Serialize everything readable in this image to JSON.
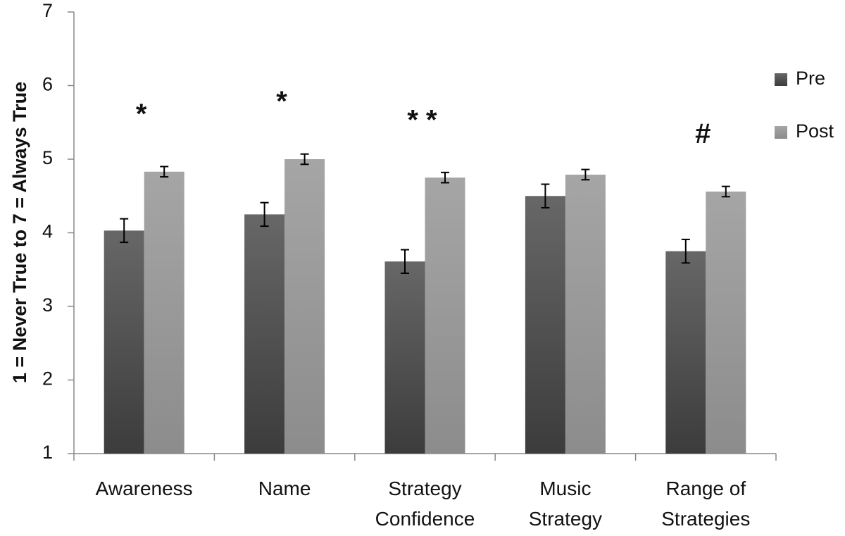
{
  "chart_data": {
    "type": "bar",
    "y_label": "1 = Never True to 7 = Always True",
    "categories": [
      "Awareness",
      "Name",
      "Strategy\nConfidence",
      "Music\nStrategy",
      "Range of\nStrategies"
    ],
    "series": [
      {
        "name": "Pre",
        "color": "#3c3c3c",
        "values": [
          4.03,
          4.25,
          3.61,
          4.5,
          3.75
        ],
        "errors": [
          0.16,
          0.16,
          0.16,
          0.16,
          0.16
        ]
      },
      {
        "name": "Post",
        "color": "#8c8c8c",
        "values": [
          4.83,
          5.0,
          4.75,
          4.79,
          4.56
        ],
        "errors": [
          0.07,
          0.07,
          0.07,
          0.07,
          0.07
        ]
      }
    ],
    "annotations": [
      "*",
      "*",
      "* *",
      null,
      "#"
    ],
    "ylim": [
      1,
      7
    ],
    "yticks": [
      1,
      2,
      3,
      4,
      5,
      6,
      7
    ],
    "grid": false,
    "legend": "right"
  }
}
